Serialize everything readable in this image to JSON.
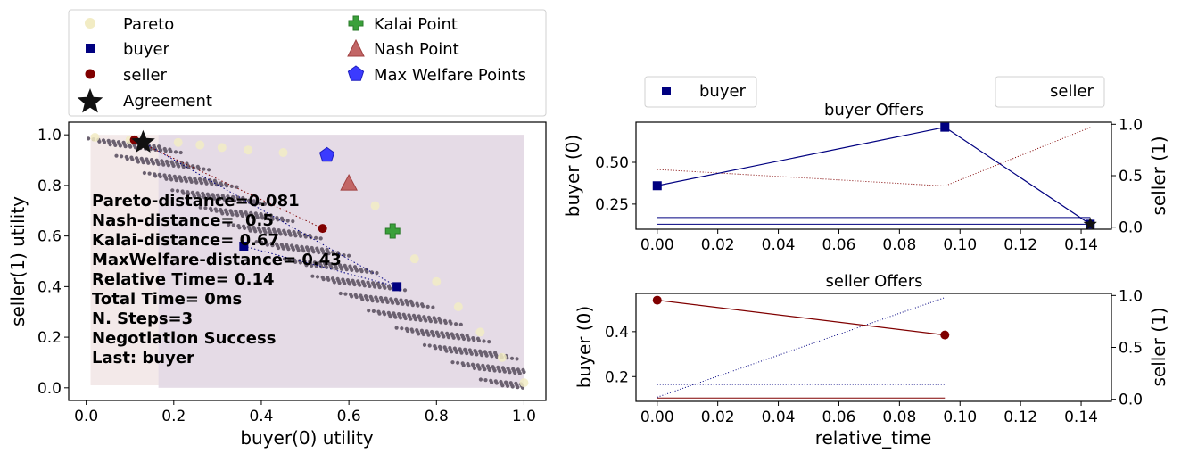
{
  "colors": {
    "buyer": "#000080",
    "seller": "#800000",
    "pareto": "#f2ecc4",
    "outcome": "#6b6170",
    "kalai": "#3aa03a",
    "nash": "#c26666",
    "welfare": "#3b3bff",
    "bg_buyer": "#f3e9e9",
    "bg_seller": "#e4dae6"
  },
  "legend": {
    "pareto": "Pareto",
    "buyer": "buyer",
    "seller": "seller",
    "agreement": "Agreement",
    "kalai": "Kalai Point",
    "nash": "Nash Point",
    "welfare": "Max Welfare Points"
  },
  "stats": [
    "Pareto-distance=0.081",
    "Nash-distance=  0.5",
    "Kalai-distance= 0.67",
    "MaxWelfare-distance= 0.43",
    "Relative Time= 0.14",
    "Total Time= 0ms",
    "N. Steps=3",
    "Negotiation Success",
    "Last: buyer"
  ],
  "chart_data": [
    {
      "type": "scatter",
      "xlabel": "buyer(0) utility",
      "ylabel": "seller(1) utility",
      "xlim": [
        -0.04,
        1.05
      ],
      "ylim": [
        -0.05,
        1.05
      ],
      "xticks": [
        0.0,
        0.2,
        0.4,
        0.6,
        0.8,
        1.0
      ],
      "yticks": [
        0.0,
        0.2,
        0.4,
        0.6,
        0.8,
        1.0
      ],
      "legend_position": "above",
      "pareto": [
        [
          0.02,
          0.99
        ],
        [
          0.1,
          0.98
        ],
        [
          0.21,
          0.97
        ],
        [
          0.26,
          0.96
        ],
        [
          0.31,
          0.95
        ],
        [
          0.37,
          0.94
        ],
        [
          0.45,
          0.93
        ],
        [
          0.55,
          0.91
        ],
        [
          0.66,
          0.72
        ],
        [
          0.75,
          0.51
        ],
        [
          0.8,
          0.42
        ],
        [
          0.85,
          0.32
        ],
        [
          0.9,
          0.22
        ],
        [
          0.95,
          0.12
        ],
        [
          1.0,
          0.02
        ]
      ],
      "buyer_offers": [
        [
          0.36,
          0.56
        ],
        [
          0.71,
          0.4
        ],
        [
          0.13,
          0.97
        ]
      ],
      "seller_offers": [
        [
          0.11,
          0.98
        ],
        [
          0.54,
          0.63
        ]
      ],
      "agreement": [
        0.13,
        0.97
      ],
      "kalai_point": [
        0.7,
        0.62
      ],
      "nash_point": [
        0.6,
        0.81
      ],
      "max_welfare_point": [
        0.55,
        0.92
      ]
    },
    {
      "type": "line",
      "title": "buyer Offers",
      "ylabel": "buyer (0)",
      "ylabel_right": "seller (1)",
      "xlim": [
        -0.007,
        0.15
      ],
      "ylim": [
        0.1,
        0.74
      ],
      "ylim_right": [
        -0.02,
        1.02
      ],
      "xticks": [
        0.0,
        0.02,
        0.04,
        0.06,
        0.08,
        0.1,
        0.12,
        0.14
      ],
      "yticks": [
        0.25,
        0.5
      ],
      "yticks_right": [
        0.0,
        0.5,
        1.0
      ],
      "legend": [
        "buyer",
        "seller"
      ],
      "series": [
        {
          "name": "buyer",
          "axis": "left",
          "x": [
            0.0,
            0.095,
            0.143
          ],
          "y": [
            0.36,
            0.71,
            0.13
          ]
        },
        {
          "name": "seller",
          "axis": "right",
          "x": [
            0.0,
            0.095,
            0.143
          ],
          "y": [
            0.56,
            0.4,
            0.97
          ]
        }
      ],
      "agreement": [
        0.143,
        0.13
      ],
      "reference_lines_left": [
        0.13,
        0.17
      ]
    },
    {
      "type": "line",
      "title": "seller Offers",
      "xlabel": "relative_time",
      "ylabel": "buyer (0)",
      "ylabel_right": "seller (1)",
      "xlim": [
        -0.007,
        0.15
      ],
      "ylim": [
        0.09,
        0.57
      ],
      "ylim_right": [
        -0.02,
        1.02
      ],
      "xticks": [
        0.0,
        0.02,
        0.04,
        0.06,
        0.08,
        0.1,
        0.12,
        0.14
      ],
      "yticks": [
        0.2,
        0.4
      ],
      "yticks_right": [
        0.0,
        0.5,
        1.0
      ],
      "series": [
        {
          "name": "seller",
          "axis": "left",
          "x": [
            0.0,
            0.095
          ],
          "y": [
            0.54,
            0.385
          ]
        },
        {
          "name": "buyer",
          "axis": "right",
          "x": [
            0.0,
            0.095
          ],
          "y": [
            0.02,
            0.98
          ]
        }
      ],
      "reference_lines_left": [
        0.105,
        0.165
      ]
    }
  ]
}
